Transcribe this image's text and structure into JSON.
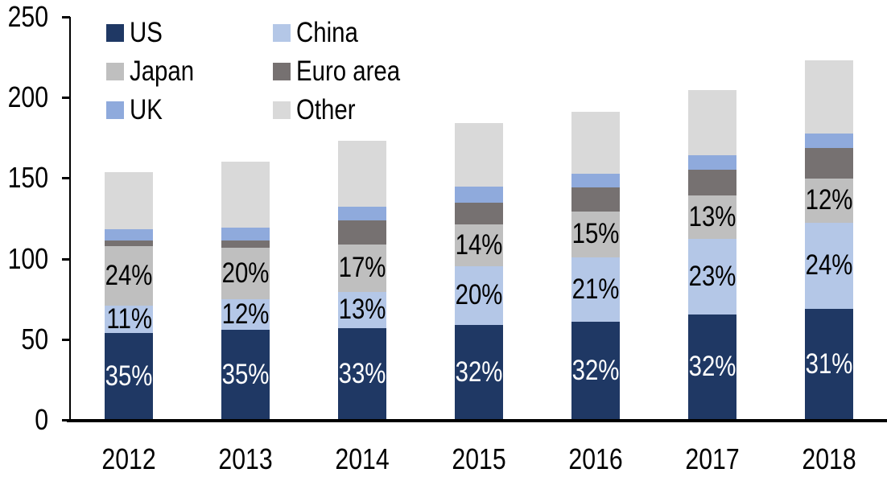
{
  "chart_data": {
    "type": "bar",
    "stacked": true,
    "title": "",
    "categories": [
      "2012",
      "2013",
      "2014",
      "2015",
      "2016",
      "2017",
      "2018"
    ],
    "series": [
      {
        "name": "US",
        "color": "#1F3864",
        "label_text_color": "#FFFFFF",
        "values": [
          54,
          56,
          57,
          59,
          61,
          65.5,
          69
        ],
        "percent_labels": [
          "35%",
          "35%",
          "33%",
          "32%",
          "32%",
          "32%",
          "31%"
        ]
      },
      {
        "name": "China",
        "color": "#B4C7E7",
        "label_text_color": "#000000",
        "values": [
          17,
          19,
          22.5,
          36.5,
          40,
          47,
          53.5
        ],
        "percent_labels": [
          "11%",
          "12%",
          "13%",
          "20%",
          "21%",
          "23%",
          "24%"
        ]
      },
      {
        "name": "Japan",
        "color": "#BFBFBF",
        "label_text_color": "#000000",
        "values": [
          37,
          32,
          29.5,
          26,
          28.5,
          26.5,
          27
        ],
        "percent_labels": [
          "24%",
          "20%",
          "17%",
          "14%",
          "15%",
          "13%",
          "12%"
        ]
      },
      {
        "name": "Euro area",
        "color": "#767171",
        "values": [
          3.5,
          4.5,
          15,
          13,
          14.5,
          16,
          19
        ],
        "percent_labels": null
      },
      {
        "name": "UK",
        "color": "#8FAADC",
        "values": [
          7,
          8,
          8.5,
          10,
          8.5,
          9,
          9
        ],
        "percent_labels": null
      },
      {
        "name": "Other",
        "color": "#D9D9D9",
        "values": [
          35,
          40.5,
          40.5,
          39.5,
          38.5,
          40.5,
          45.5
        ],
        "percent_labels": null
      }
    ],
    "stack_order_bottom_to_top": [
      "US",
      "China",
      "Japan",
      "Euro area",
      "UK",
      "Other"
    ],
    "totals_approx": [
      153.5,
      160,
      173,
      184,
      191,
      204.5,
      223
    ],
    "y_axis": {
      "min": 0,
      "max": 250,
      "tick_interval": 50,
      "tick_labels": [
        "250",
        "200",
        "150",
        "100",
        "50",
        "0"
      ]
    },
    "x_axis": {
      "tick_labels": [
        "2012",
        "2013",
        "2014",
        "2015",
        "2016",
        "2017",
        "2018"
      ]
    },
    "legend": {
      "position": "top-left",
      "columns": 2,
      "order": [
        "US",
        "China",
        "Japan",
        "Euro area",
        "UK",
        "Other"
      ]
    },
    "grid": false,
    "axis_color": "#000000",
    "background_color": "#FFFFFF",
    "bar_label_colors": {
      "US": "#FFFFFF",
      "China": "#000000",
      "Japan": "#000000"
    }
  }
}
